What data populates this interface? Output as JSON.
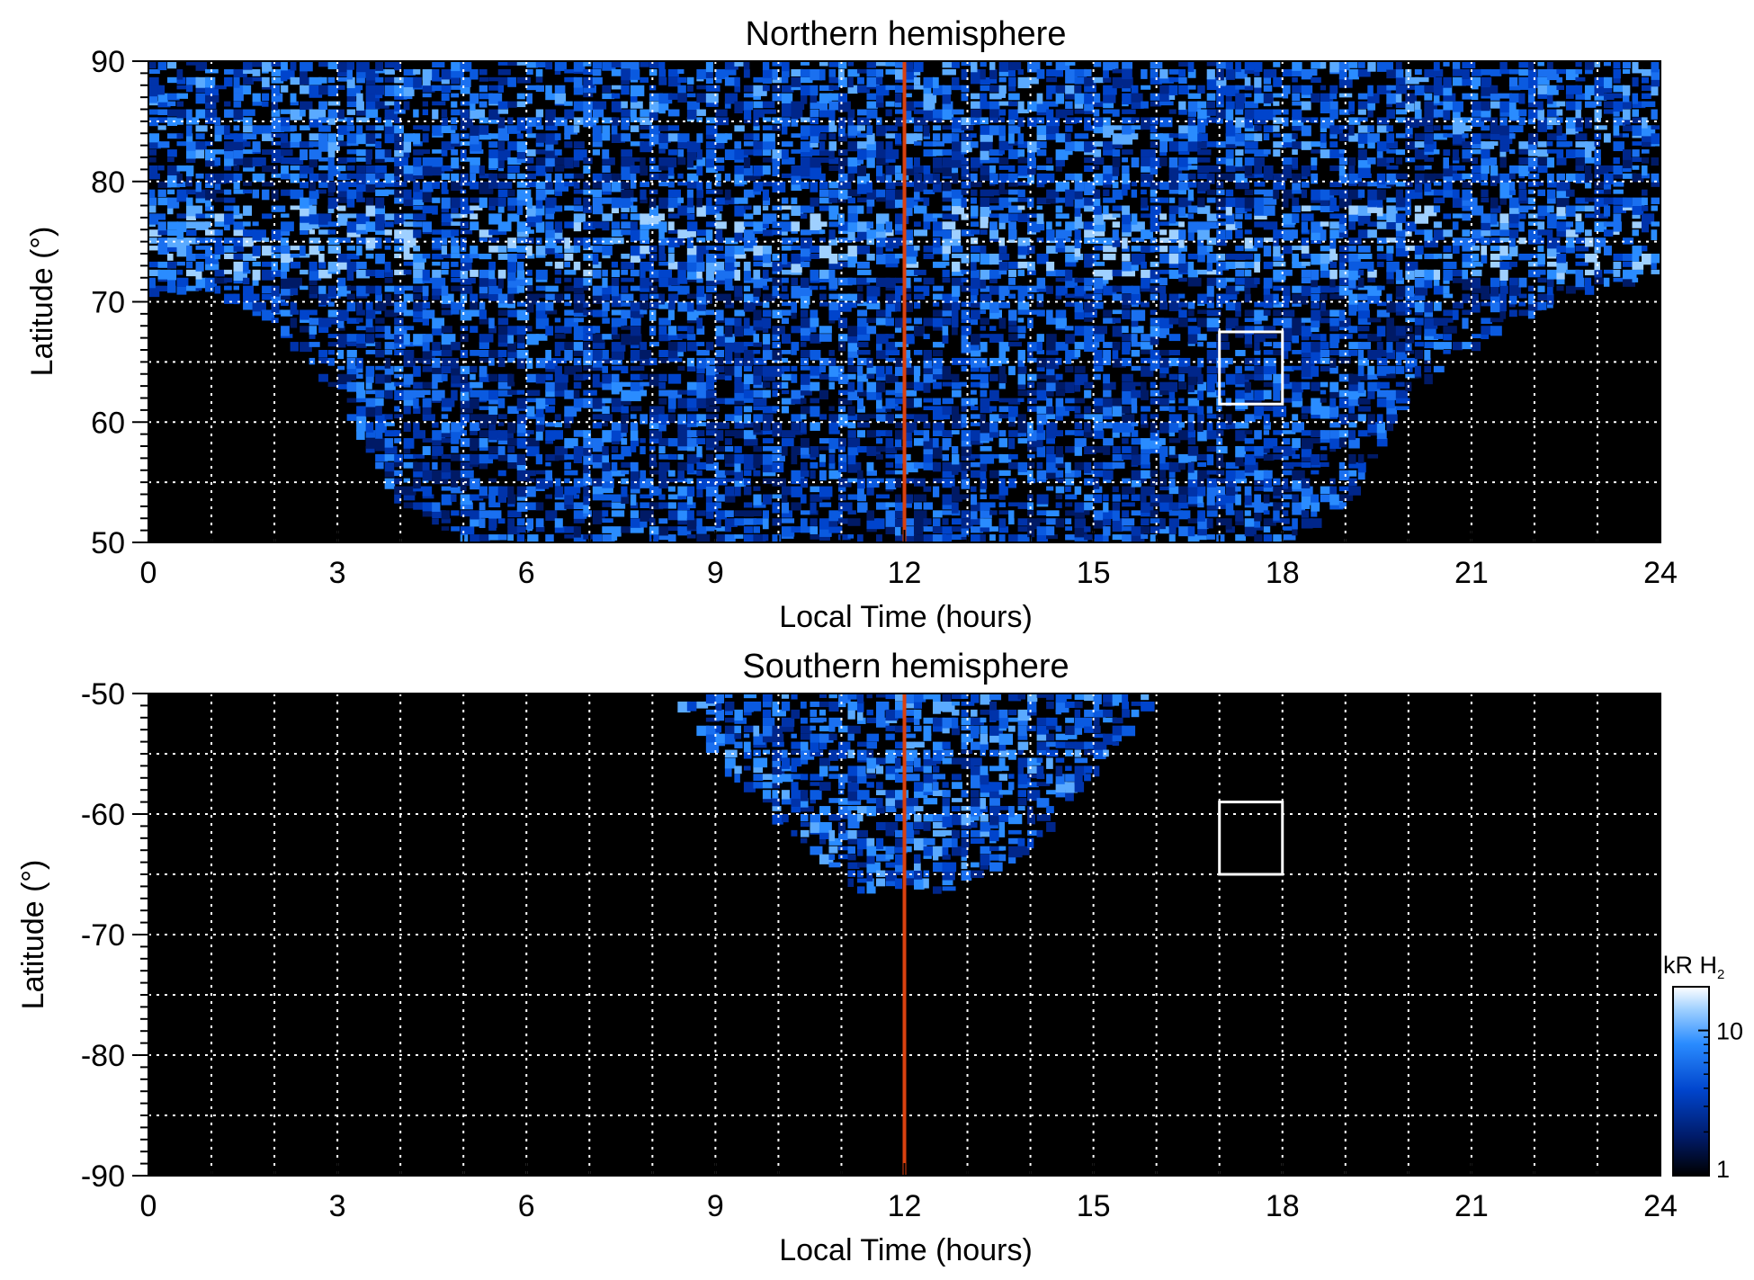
{
  "chart_data": [
    {
      "type": "heatmap",
      "title": "Northern hemisphere",
      "xlabel": "Local Time (hours)",
      "ylabel": "Latitude (°)",
      "xlim": [
        0,
        24
      ],
      "ylim": [
        50,
        90
      ],
      "xticks": [
        0,
        3,
        6,
        9,
        12,
        15,
        18,
        21,
        24
      ],
      "yticks": [
        50,
        60,
        70,
        80,
        90
      ],
      "grid": true,
      "grid_x_step": 1,
      "grid_y_step": 5,
      "noon_line": {
        "x": 12,
        "color": "#d9410f"
      },
      "box": {
        "x": [
          17,
          18
        ],
        "y": [
          61.5,
          67.5
        ],
        "color": "#ffffff"
      },
      "emission": {
        "coverage_boundary": {
          "lt": [
            0,
            1,
            2,
            3,
            4,
            5,
            6,
            7,
            8,
            9,
            10,
            11,
            12,
            13,
            14,
            15,
            16,
            17,
            18,
            19,
            20,
            21,
            22,
            23,
            24
          ],
          "min_lat": [
            71,
            71,
            68,
            62,
            53,
            50,
            50,
            50,
            50,
            50,
            50,
            50,
            50,
            50,
            50,
            50,
            50,
            50,
            50,
            53,
            62,
            66,
            69,
            71,
            72
          ]
        },
        "bright_band_lat": [
          72,
          78
        ],
        "intensity_kR": [
          1,
          20
        ]
      }
    },
    {
      "type": "heatmap",
      "title": "Southern hemisphere",
      "xlabel": "Local Time (hours)",
      "ylabel": "Latitude (°)",
      "xlim": [
        0,
        24
      ],
      "ylim": [
        -90,
        -50
      ],
      "xticks": [
        0,
        3,
        6,
        9,
        12,
        15,
        18,
        21,
        24
      ],
      "yticks": [
        -90,
        -80,
        -70,
        -60,
        -50
      ],
      "grid": true,
      "grid_x_step": 1,
      "grid_y_step": 5,
      "noon_line": {
        "x": 12,
        "color": "#d9410f"
      },
      "box": {
        "x": [
          17,
          18
        ],
        "y": [
          -65,
          -59
        ],
        "color": "#ffffff"
      },
      "emission": {
        "coverage_lt": [
          8.3,
          16.0
        ],
        "coverage_min_lat": [
          -50,
          -57,
          -62,
          -66.5,
          -66,
          -66.5,
          -63,
          -57,
          -50
        ],
        "coverage_min_lat_lt": [
          8.3,
          9.3,
          10.3,
          11.3,
          12.0,
          12.7,
          14.0,
          15.0,
          16.0
        ],
        "intensity_kR": [
          1,
          20
        ]
      }
    }
  ],
  "colorbar": {
    "label": "kR H",
    "label_sub": "2",
    "scale": "log",
    "range": [
      1,
      20
    ],
    "ticks": [
      {
        "value": 1,
        "label": "1"
      },
      {
        "value": 10,
        "label": "10"
      }
    ],
    "colors": [
      "#000000",
      "#001a66",
      "#0044cc",
      "#2a8cff",
      "#9fd0ff",
      "#ffffff"
    ]
  }
}
